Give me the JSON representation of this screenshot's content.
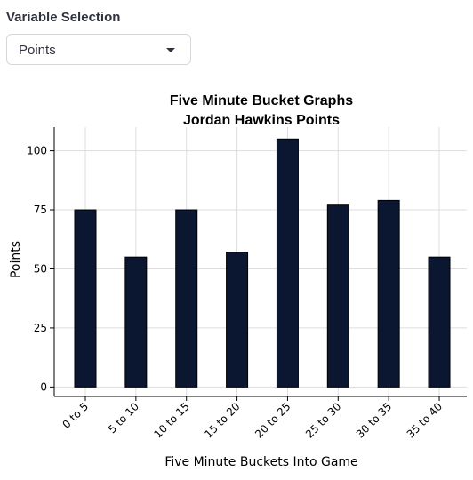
{
  "controls": {
    "variable_label": "Variable Selection",
    "selected": "Points"
  },
  "colors": {
    "bar": "#0b1631",
    "grid": "#dddddd",
    "axis": "#000000"
  },
  "chart_data": {
    "type": "bar",
    "title": "Five Minute Bucket Graphs",
    "subtitle": "Jordan Hawkins Points",
    "xlabel": "Five Minute Buckets Into Game",
    "ylabel": "Points",
    "categories": [
      "0 to 5",
      "5 to 10",
      "10 to 15",
      "15 to 20",
      "20 to 25",
      "25 to 30",
      "30 to 35",
      "35 to 40"
    ],
    "values": [
      75,
      55,
      75,
      57,
      105,
      77,
      79,
      55
    ],
    "yticks": [
      0,
      25,
      50,
      75,
      100
    ],
    "ylim": [
      -4,
      110
    ],
    "grid": true
  }
}
